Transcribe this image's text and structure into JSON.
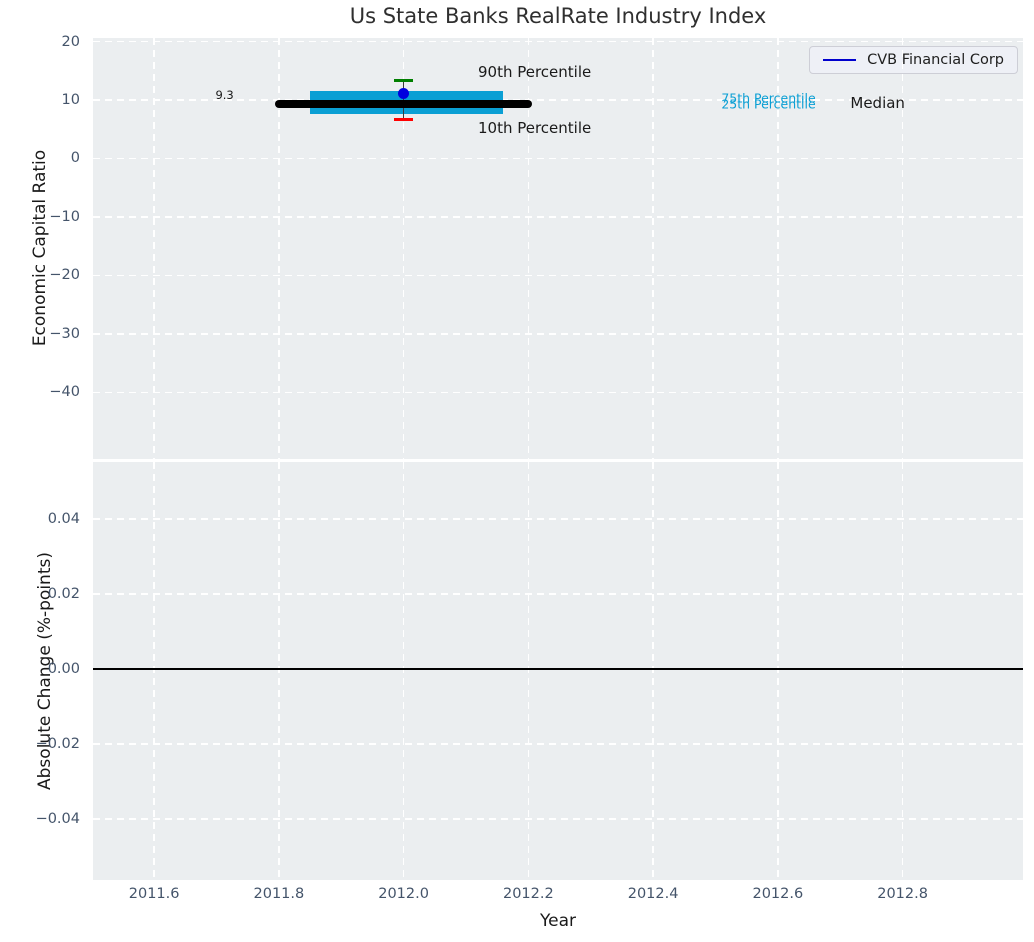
{
  "title": "Us State Banks RealRate Industry Index",
  "legend": {
    "label": "CVB Financial Corp",
    "line_color": "#0000cd"
  },
  "styles": {
    "plot_bg": "#ebeef0",
    "grid_color": "#ffffff",
    "tick_color": "#44546a",
    "title_color": "#2f2f2f",
    "axis_label_color": "#1a1a1a"
  },
  "chart_data": [
    {
      "type": "scatter",
      "subplot": "top",
      "title": "Us State Banks RealRate Industry Index",
      "ylabel": "Economic Capital Ratio",
      "xlabel": "Year",
      "xlim": [
        2011.502,
        2012.993
      ],
      "ylim": [
        -51.4,
        20.6
      ],
      "grid": "white dashed",
      "legend_position": "upper right",
      "x_tick_values": [
        2011.6,
        2011.8,
        2012.0,
        2012.2,
        2012.4,
        2012.6,
        2012.8
      ],
      "x_tick_labels": [
        "2011.6",
        "2011.8",
        "2012.0",
        "2012.2",
        "2012.4",
        "2012.6",
        "2012.8"
      ],
      "y_tick_values": [
        20,
        10,
        0,
        -10,
        -20,
        -30,
        -40
      ],
      "y_tick_labels": [
        "20",
        "10",
        "0",
        "−10",
        "−20",
        "−30",
        "−40"
      ],
      "industry_index": {
        "year": 2012.0,
        "median": 9.3,
        "median_label": "9.3",
        "p75": 11.5,
        "p25": 7.6,
        "p90": 13.3,
        "p10": 6.7,
        "median_line_x": [
          2011.8,
          2012.2
        ],
        "iqr_bar_x": [
          2011.85,
          2012.16
        ]
      },
      "series": [
        {
          "name": "CVB Financial Corp",
          "type": "scatter",
          "color": "#0000df",
          "x": [
            2012.0
          ],
          "y": [
            11.1
          ]
        }
      ],
      "annotations": [
        {
          "text": "90th Percentile",
          "x": 2012.21,
          "y": 14.8,
          "color": "#1a1a1a",
          "size": 15
        },
        {
          "text": "10th Percentile",
          "x": 2012.21,
          "y": 5.2,
          "color": "#1a1a1a",
          "size": 15
        },
        {
          "text": "75th Percentile",
          "x": 2012.585,
          "y": 10.3,
          "color": "#0a9fd4",
          "size": 12.5
        },
        {
          "text": "25th Percentile",
          "x": 2012.585,
          "y": 9.3,
          "color": "#0a9fd4",
          "size": 12.5
        },
        {
          "text": "Median",
          "x": 2012.76,
          "y": 9.4,
          "color": "#1a1a1a",
          "size": 15
        },
        {
          "text": "9.3",
          "x": 2011.713,
          "y": 10.9,
          "color": "#1a1a1a",
          "size": 11.5
        }
      ],
      "colors": {
        "median_line": "#000000",
        "iqr_bar": "#0a9fd4",
        "err_high_cap": "#007f00",
        "err_low_cap": "#ff0000",
        "err_stem": "#3a3a3a",
        "company_dot": "#0000df"
      }
    },
    {
      "type": "line",
      "subplot": "bottom",
      "ylabel": "Absolute Change (%-points)",
      "xlabel": "Year",
      "xlim": [
        2011.502,
        2012.993
      ],
      "ylim": [
        -0.0563,
        0.0552
      ],
      "grid": "white dashed",
      "x_tick_values": [
        2011.6,
        2011.8,
        2012.0,
        2012.2,
        2012.4,
        2012.6,
        2012.8
      ],
      "x_tick_labels": [
        "2011.6",
        "2011.8",
        "2012.0",
        "2012.2",
        "2012.4",
        "2012.6",
        "2012.8"
      ],
      "y_tick_values": [
        0.04,
        0.02,
        0.0,
        -0.02,
        -0.04
      ],
      "y_tick_labels": [
        "0.04",
        "0.02",
        "0.00",
        "−0.02",
        "−0.04"
      ],
      "zero_line": {
        "y": 0.0,
        "color": "#000000"
      },
      "series": []
    }
  ]
}
